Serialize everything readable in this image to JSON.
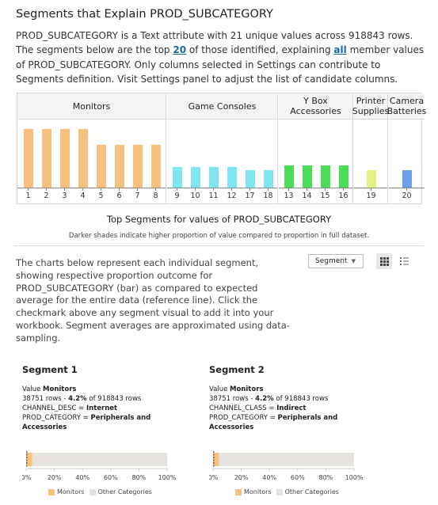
{
  "header": {
    "title": "Segments that Explain PROD_SUBCATEGORY",
    "desc_p1": "PROD_SUBCATEGORY is a Text attribute with 21 unique values across 918843 rows. The segments below are the top ",
    "desc_top_link": "20",
    "desc_p2": " of those identified, explaining ",
    "desc_all_link": "all",
    "desc_p3": " member values of PROD_SUBCATEGORY. Only columns selected in Settings can contribute to Segments definition. Visit Settings panel to adjust the list of candidate columns."
  },
  "overview": {
    "groups": [
      {
        "label": "Monitors",
        "color": "#f5c17d",
        "segments": [
          1,
          2,
          3,
          4,
          5,
          6,
          7,
          8
        ],
        "levels": [
          0.92,
          0.92,
          0.92,
          0.92,
          0.67,
          0.67,
          0.67,
          0.67
        ]
      },
      {
        "label": "Game Consoles",
        "color": "#7fe5ef",
        "segments": [
          9,
          10,
          11,
          12,
          17,
          18
        ],
        "levels": [
          0.33,
          0.33,
          0.33,
          0.33,
          0.27,
          0.27
        ]
      },
      {
        "label": "Y Box Accessories",
        "color": "#4bdc58",
        "segments": [
          13,
          14,
          15,
          16
        ],
        "levels": [
          0.35,
          0.35,
          0.35,
          0.35
        ]
      },
      {
        "label": "Printer Supplies",
        "color": "#e4f286",
        "segments": [
          19
        ],
        "levels": [
          0.27
        ]
      },
      {
        "label": "Camera Batteries",
        "color": "#6b9fe8",
        "segments": [
          20
        ],
        "levels": [
          0.28
        ]
      }
    ],
    "caption": "Top Segments for values of PROD_SUBCATEGORY",
    "subcaption": "Darker shades indicate higher proportion of value compared to proportion in full dataset."
  },
  "controls": {
    "explain": "The charts below represent each individual segment, showing respective proportion outcome for PROD_SUBCATEGORY (bar) as compared to expected average for the entire data (reference line). Click the checkmark above any segment visual to add it into your workbook. Segment averages are approximated using data-sampling.",
    "select_value": "Segment",
    "grid_icon": "grid-view-icon",
    "list_icon": "list-view-icon"
  },
  "segments": [
    {
      "title": "Segment 1",
      "value_label": "Value",
      "value": "Monitors",
      "rows_a": "38751 rows - ",
      "rows_pct": "4.2%",
      "rows_b": " of 918843 rows",
      "cond1_key": "CHANNEL_DESC = ",
      "cond1_val": "Internet",
      "cond2_key": "PROD_CATEGORY = ",
      "cond2_val": "Peripherals and Accessories",
      "share": 0.042,
      "reference": 0.005,
      "ticks": [
        "0%",
        "20%",
        "40%",
        "60%",
        "80%",
        "100%"
      ],
      "legend_a": "Monitors",
      "legend_b": "Other Categories"
    },
    {
      "title": "Segment 2",
      "value_label": "Value",
      "value": "Monitors",
      "rows_a": "38751 rows - ",
      "rows_pct": "4.2%",
      "rows_b": " of 918843 rows",
      "cond1_key": "CHANNEL_CLASS = ",
      "cond1_val": "Indirect",
      "cond2_key": "PROD_CATEGORY = ",
      "cond2_val": "Peripherals and Accessories",
      "share": 0.042,
      "reference": 0.005,
      "ticks": [
        "0%",
        "20%",
        "40%",
        "60%",
        "80%",
        "100%"
      ],
      "legend_a": "Monitors",
      "legend_b": "Other Categories"
    }
  ],
  "colors": {
    "monitors": "#f5c17d",
    "other": "#e6e3df",
    "reference": "#333333",
    "link": "#1b6aa8"
  }
}
